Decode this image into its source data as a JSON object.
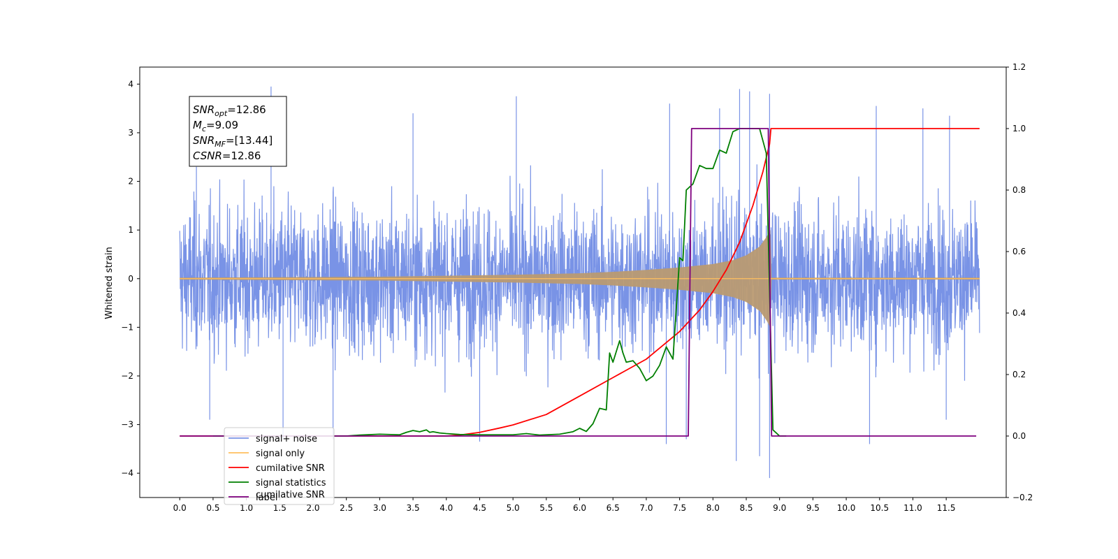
{
  "chart_data": {
    "type": "line",
    "ylabel": "Whitened strain",
    "xlim": [
      -0.6,
      12.4
    ],
    "ylim": [
      -4.5,
      4.35
    ],
    "ylim_right": [
      -0.2,
      1.2
    ],
    "x_ticks": [
      "0.0",
      "0.5",
      "1.0",
      "1.5",
      "2.0",
      "2.5",
      "3.0",
      "3.5",
      "4.0",
      "4.5",
      "5.0",
      "5.5",
      "6.0",
      "6.5",
      "7.0",
      "7.5",
      "8.0",
      "8.5",
      "9.0",
      "9.5",
      "10.0",
      "10.5",
      "11.0",
      "11.5"
    ],
    "y_ticks": [
      "4",
      "3",
      "2",
      "1",
      "0",
      "−1",
      "−2",
      "−3",
      "−4"
    ],
    "y_ticks_right": [
      "1.2",
      "1.0",
      "0.8",
      "0.6",
      "0.4",
      "0.2",
      "0.0",
      "−0.2"
    ],
    "grid": false,
    "legend": {
      "placement": "lower-left",
      "entries": [
        {
          "label": "signal+ noise",
          "color": "#7993e6"
        },
        {
          "label": "signal only",
          "color": "#ffbf5f"
        },
        {
          "label": "cumilative SNR",
          "color": "#ff0000"
        },
        {
          "label": "signal statistics",
          "color": "#007f00"
        },
        {
          "label": "label",
          "color": "#7f007f"
        }
      ],
      "ghost_text": "cumilative SNR"
    },
    "annotation": {
      "lines": [
        {
          "base": "SNR",
          "sub": "opt",
          "text": "=12.86"
        },
        {
          "base": "M",
          "sub": "c",
          "text": "=9.09"
        },
        {
          "base": "SNR",
          "sub": "MF",
          "text": "=[13.44]"
        },
        {
          "base": "CSNR",
          "sub": "",
          "text": "=12.86"
        }
      ]
    },
    "series": [
      {
        "name": "signal+ noise",
        "axis": "left",
        "color": "#7993e6",
        "x_range": [
          0.0,
          12.0
        ],
        "typical_band": [
          -1.9,
          1.9
        ],
        "spikes": [
          {
            "x": 0.25,
            "y": 2.3
          },
          {
            "x": 0.45,
            "y": -2.9
          },
          {
            "x": 1.37,
            "y": 3.95
          },
          {
            "x": 1.55,
            "y": -3.3
          },
          {
            "x": 2.3,
            "y": -3.3
          },
          {
            "x": 3.5,
            "y": 3.4
          },
          {
            "x": 4.5,
            "y": -3.35
          },
          {
            "x": 5.05,
            "y": 3.75
          },
          {
            "x": 7.3,
            "y": -3.4
          },
          {
            "x": 7.35,
            "y": 3.6
          },
          {
            "x": 7.6,
            "y": -3.3
          },
          {
            "x": 8.1,
            "y": 3.5
          },
          {
            "x": 8.35,
            "y": -3.75
          },
          {
            "x": 8.4,
            "y": 3.9
          },
          {
            "x": 8.55,
            "y": 3.85
          },
          {
            "x": 8.7,
            "y": -3.65
          },
          {
            "x": 8.85,
            "y": 3.8
          },
          {
            "x": 8.85,
            "y": -4.1
          },
          {
            "x": 10.35,
            "y": -3.4
          },
          {
            "x": 10.45,
            "y": 3.55
          },
          {
            "x": 11.15,
            "y": 3.5
          },
          {
            "x": 11.5,
            "y": -2.9
          },
          {
            "x": 11.55,
            "y": 3.35
          }
        ]
      },
      {
        "name": "signal only",
        "axis": "left",
        "color": "#ffbf5f",
        "x": [
          0.0,
          3.0,
          4.0,
          5.0,
          6.0,
          6.5,
          7.0,
          7.5,
          8.0,
          8.3,
          8.5,
          8.7,
          8.8,
          8.86,
          8.88,
          12.0
        ],
        "amplitude": [
          0.02,
          0.04,
          0.06,
          0.08,
          0.11,
          0.14,
          0.18,
          0.23,
          0.3,
          0.38,
          0.48,
          0.66,
          0.85,
          1.0,
          0.02,
          0.02
        ]
      },
      {
        "name": "cumilative SNR",
        "axis": "right",
        "color": "#ff0000",
        "x": [
          0.0,
          4.0,
          4.2,
          4.5,
          4.8,
          5.0,
          5.5,
          6.0,
          6.5,
          7.0,
          7.5,
          7.8,
          8.0,
          8.2,
          8.4,
          8.6,
          8.75,
          8.85,
          8.87,
          8.88,
          12.0
        ],
        "y": [
          0.0,
          0.0,
          0.003,
          0.012,
          0.026,
          0.036,
          0.07,
          0.13,
          0.19,
          0.25,
          0.34,
          0.41,
          0.47,
          0.54,
          0.63,
          0.75,
          0.86,
          0.95,
          1.0,
          1.0,
          1.0
        ]
      },
      {
        "name": "signal statistics",
        "axis": "right",
        "color": "#007f00",
        "x": [
          0.5,
          2.5,
          2.7,
          3.0,
          3.3,
          3.4,
          3.5,
          3.6,
          3.7,
          3.75,
          3.8,
          3.9,
          4.0,
          4.2,
          4.5,
          5.0,
          5.2,
          5.4,
          5.7,
          5.9,
          6.0,
          6.1,
          6.2,
          6.3,
          6.4,
          6.45,
          6.5,
          6.6,
          6.65,
          6.7,
          6.8,
          6.9,
          7.0,
          7.1,
          7.2,
          7.3,
          7.4,
          7.5,
          7.55,
          7.6,
          7.7,
          7.8,
          7.9,
          8.0,
          8.1,
          8.2,
          8.3,
          8.4,
          8.5,
          8.6,
          8.7,
          8.8,
          8.9,
          9.0,
          9.1
        ],
        "y": [
          0.0,
          0.0,
          0.003,
          0.006,
          0.004,
          0.012,
          0.018,
          0.014,
          0.02,
          0.012,
          0.014,
          0.01,
          0.008,
          0.005,
          0.004,
          0.004,
          0.008,
          0.003,
          0.006,
          0.014,
          0.025,
          0.015,
          0.04,
          0.09,
          0.085,
          0.27,
          0.24,
          0.31,
          0.27,
          0.24,
          0.245,
          0.22,
          0.18,
          0.195,
          0.23,
          0.29,
          0.25,
          0.58,
          0.57,
          0.8,
          0.82,
          0.88,
          0.87,
          0.87,
          0.93,
          0.92,
          0.99,
          1.0,
          1.0,
          1.0,
          1.0,
          0.92,
          0.02,
          0.0,
          0.0
        ]
      },
      {
        "name": "label",
        "axis": "right",
        "color": "#7f007f",
        "x": [
          0.0,
          7.63,
          7.68,
          8.83,
          8.88,
          11.95
        ],
        "y": [
          0.0,
          0.0,
          1.0,
          1.0,
          0.0,
          0.0
        ]
      }
    ]
  }
}
